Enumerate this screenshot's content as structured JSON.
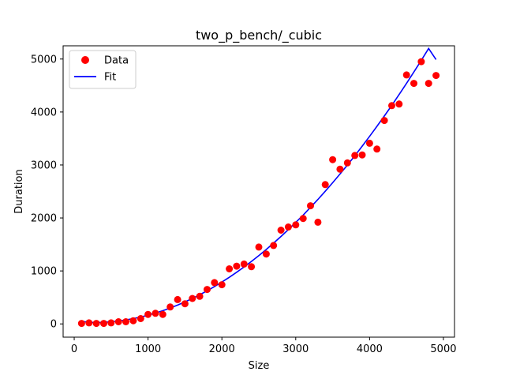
{
  "chart_data": {
    "type": "scatter",
    "title": "two_p_bench/_cubic",
    "xlabel": "Size",
    "ylabel": "Duration",
    "xlim": [
      -150,
      5150
    ],
    "ylim": [
      -250,
      5250
    ],
    "xticks": [
      0,
      1000,
      2000,
      3000,
      4000,
      5000
    ],
    "yticks": [
      0,
      1000,
      2000,
      3000,
      4000,
      5000
    ],
    "grid": false,
    "legend": {
      "position": "top-left"
    },
    "series": [
      {
        "name": "Data",
        "kind": "scatter",
        "color": "#ff0000",
        "x": [
          100,
          200,
          300,
          400,
          500,
          600,
          700,
          800,
          900,
          1000,
          1100,
          1200,
          1300,
          1400,
          1500,
          1600,
          1700,
          1800,
          1900,
          2000,
          2100,
          2200,
          2300,
          2400,
          2500,
          2600,
          2700,
          2800,
          2900,
          3000,
          3100,
          3200,
          3300,
          3400,
          3500,
          3600,
          3700,
          3800,
          3900,
          4000,
          4100,
          4200,
          4300,
          4400,
          4500,
          4600,
          4700,
          4800,
          4900
        ],
        "y": [
          10,
          20,
          10,
          10,
          20,
          40,
          40,
          60,
          100,
          180,
          200,
          180,
          320,
          460,
          380,
          480,
          520,
          650,
          780,
          740,
          1040,
          1090,
          1130,
          1080,
          1450,
          1320,
          1480,
          1770,
          1830,
          1870,
          1990,
          2230,
          1920,
          2630,
          3100,
          2920,
          3040,
          3180,
          3190,
          3410,
          3300,
          3840,
          4120,
          4150,
          4700,
          4540,
          4950,
          4540,
          4690
        ]
      },
      {
        "name": "Fit",
        "kind": "line",
        "color": "#0000ff",
        "x": [
          100,
          200,
          300,
          400,
          500,
          600,
          700,
          800,
          900,
          1000,
          1100,
          1200,
          1300,
          1400,
          1500,
          1600,
          1700,
          1800,
          1900,
          2000,
          2100,
          2200,
          2300,
          2400,
          2500,
          2600,
          2700,
          2800,
          2900,
          3000,
          3100,
          3200,
          3300,
          3400,
          3500,
          3600,
          3700,
          3800,
          3900,
          4000,
          4100,
          4200,
          4300,
          4400,
          4500,
          4600,
          4700,
          4800,
          4900
        ],
        "y": [
          50,
          30,
          25,
          30,
          40,
          55,
          75,
          100,
          130,
          165,
          205,
          250,
          300,
          355,
          415,
          480,
          550,
          625,
          705,
          790,
          880,
          975,
          1075,
          1180,
          1290,
          1405,
          1525,
          1650,
          1780,
          1915,
          2055,
          2200,
          2350,
          2505,
          2665,
          2830,
          3000,
          3175,
          3355,
          3540,
          3730,
          3925,
          4125,
          4330,
          4540,
          4755,
          4975,
          5200,
          4990
        ]
      }
    ]
  }
}
